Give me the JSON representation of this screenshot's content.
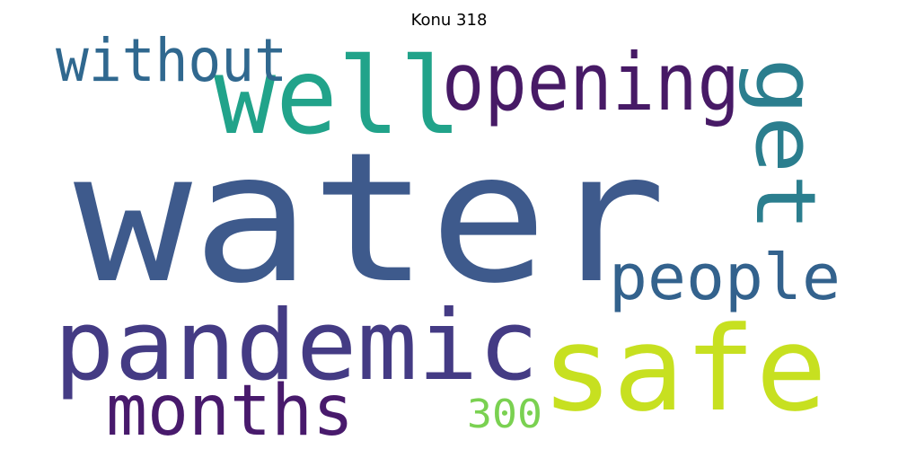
{
  "title": "Konu 318",
  "words": [
    {
      "text": "water",
      "color": "#3e5a8c"
    },
    {
      "text": "well",
      "color": "#21a38a"
    },
    {
      "text": "opening",
      "color": "#471a66"
    },
    {
      "text": "without",
      "color": "#30688f"
    },
    {
      "text": "get",
      "color": "#2b7e8e"
    },
    {
      "text": "people",
      "color": "#33628d"
    },
    {
      "text": "pandemic",
      "color": "#443b84"
    },
    {
      "text": "safe",
      "color": "#c7e020"
    },
    {
      "text": "months",
      "color": "#481a6c"
    },
    {
      "text": "300",
      "color": "#7ad151"
    }
  ]
}
